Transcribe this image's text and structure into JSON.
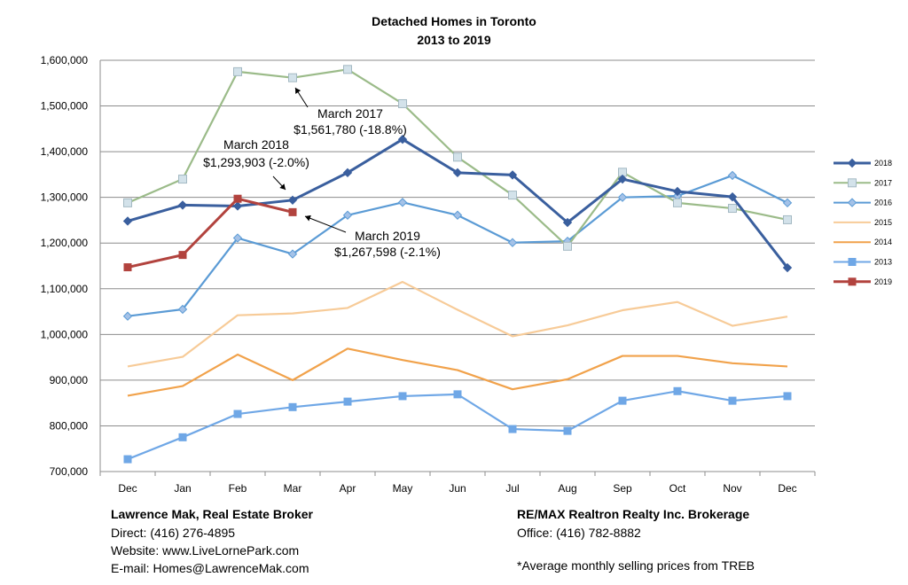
{
  "chart_data": {
    "type": "line",
    "title": "Detached Homes in Toronto",
    "subtitle": "2013 to 2019",
    "xlabel": "",
    "ylabel": "",
    "categories": [
      "Dec",
      "Jan",
      "Feb",
      "Mar",
      "Apr",
      "May",
      "Jun",
      "Jul",
      "Aug",
      "Sep",
      "Oct",
      "Nov",
      "Dec"
    ],
    "ylim": [
      700000,
      1600000
    ],
    "yticks": [
      700000,
      800000,
      900000,
      1000000,
      1100000,
      1200000,
      1300000,
      1400000,
      1500000,
      1600000
    ],
    "ytick_labels": [
      "700,000",
      "800,000",
      "900,000",
      "1,000,000",
      "1,100,000",
      "1,200,000",
      "1,300,000",
      "1,400,000",
      "1,500,000",
      "1,600,000"
    ],
    "grid": true,
    "legend_position": "right",
    "series": [
      {
        "name": "2018",
        "color": "#3a5f9e",
        "marker": "diamond",
        "values": [
          1248000,
          1283000,
          1281000,
          1293903,
          1354000,
          1427000,
          1354000,
          1349000,
          1245000,
          1340000,
          1313000,
          1301000,
          1146000
        ]
      },
      {
        "name": "2017",
        "color": "#9bbb89",
        "marker": "square-light",
        "values": [
          1288000,
          1340000,
          1575000,
          1561780,
          1580000,
          1505000,
          1388000,
          1305000,
          1193000,
          1355000,
          1288000,
          1276000,
          1251000
        ]
      },
      {
        "name": "2016",
        "color": "#5b9bd5",
        "marker": "diamond-light",
        "values": [
          1040000,
          1055000,
          1211000,
          1176000,
          1261000,
          1289000,
          1261000,
          1201000,
          1204000,
          1300000,
          1303000,
          1348000,
          1288000
        ]
      },
      {
        "name": "2015",
        "color": "#f7cb98",
        "marker": "none",
        "values": [
          930000,
          951000,
          1042000,
          1046000,
          1058000,
          1115000,
          1054000,
          996000,
          1020000,
          1053000,
          1071000,
          1019000,
          1039000
        ]
      },
      {
        "name": "2014",
        "color": "#f1a24b",
        "marker": "none",
        "values": [
          866000,
          887000,
          956000,
          900000,
          969000,
          944000,
          922000,
          880000,
          902000,
          953000,
          953000,
          937000,
          930000
        ]
      },
      {
        "name": "2013",
        "color": "#6fa7e6",
        "marker": "square",
        "values": [
          727000,
          775000,
          826000,
          841000,
          853000,
          865000,
          869000,
          793000,
          789000,
          855000,
          876000,
          855000,
          865000
        ]
      },
      {
        "name": "2019",
        "color": "#b2433e",
        "marker": "square",
        "values": [
          1147000,
          1174000,
          1297000,
          1267598,
          null,
          null,
          null,
          null,
          null,
          null,
          null,
          null,
          null
        ]
      }
    ],
    "annotations": [
      {
        "id": "a2017",
        "line1": "March 2017",
        "line2": "$1,561,780 (-18.8%)",
        "series": "2017",
        "index": 3
      },
      {
        "id": "a2018",
        "line1": "March 2018",
        "line2": "$1,293,903 (-2.0%)",
        "series": "2018",
        "index": 3
      },
      {
        "id": "a2019",
        "line1": "March 2019",
        "line2": "$1,267,598 (-2.1%)",
        "series": "2019",
        "index": 3
      }
    ]
  },
  "footer": {
    "broker_name": "Lawrence Mak, Real Estate Broker",
    "direct": "Direct:  (416) 276-4895",
    "website": "Website:  www.LiveLornePark.com",
    "email": "E-mail:  Homes@LawrenceMak.com",
    "brokerage": "RE/MAX Realtron Realty Inc. Brokerage",
    "office": "Office: (416) 782-8882",
    "note": "*Average monthly selling prices from TREB"
  }
}
